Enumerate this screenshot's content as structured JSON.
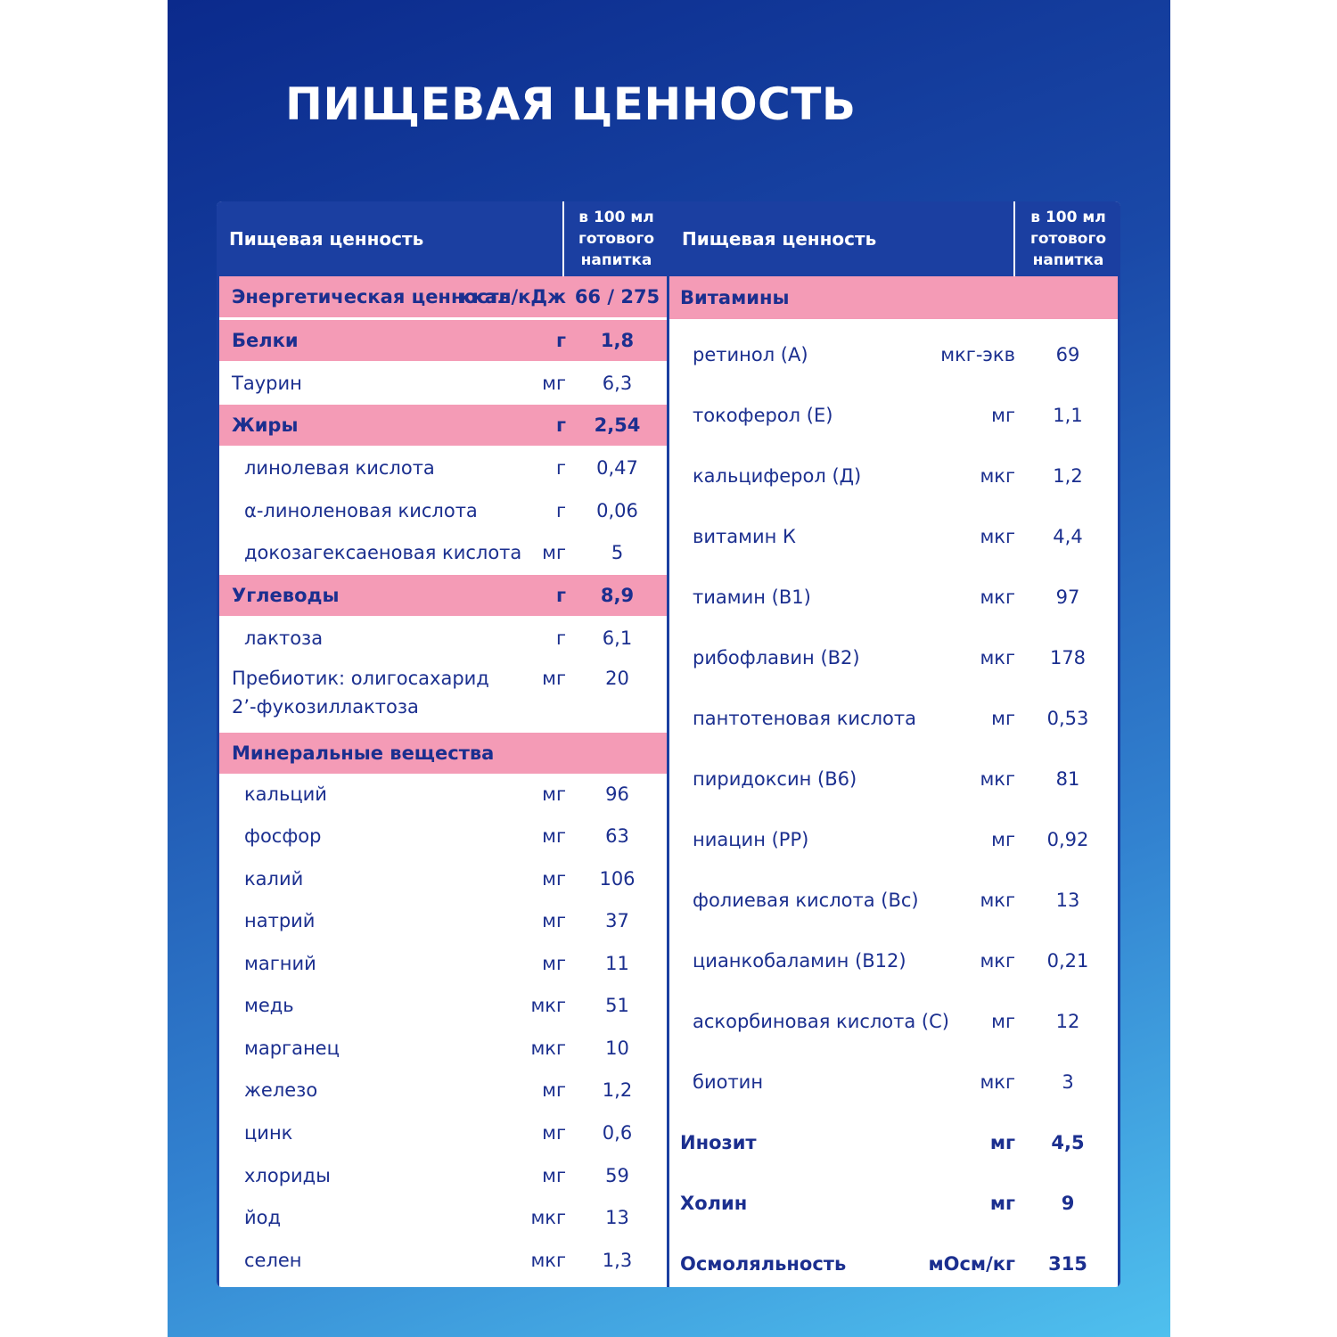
{
  "title": "ПИЩЕВАЯ ЦЕННОСТЬ",
  "header": {
    "name_label": "Пищевая ценность",
    "value_label_lines": [
      "в 100 мл",
      "готового",
      "напитка"
    ]
  },
  "left_rows": [
    {
      "name": "Энергетическая ценность",
      "unit": "ккал/кДж",
      "value": "66 / 275",
      "style": "pink"
    },
    {
      "name": "Белки",
      "unit": "г",
      "value": "1,8",
      "style": "pink"
    },
    {
      "name": "Таурин",
      "unit": "мг",
      "value": "6,3",
      "style": "plain"
    },
    {
      "name": "Жиры",
      "unit": "г",
      "value": "2,54",
      "style": "pink"
    },
    {
      "name": "линолевая кислота",
      "unit": "г",
      "value": "0,47",
      "style": "sub"
    },
    {
      "name": "α-линоленовая кислота",
      "unit": "г",
      "value": "0,06",
      "style": "sub"
    },
    {
      "name": "докозагексаеновая кислота",
      "unit": "мг",
      "value": "5",
      "style": "sub"
    },
    {
      "name": "Углеводы",
      "unit": "г",
      "value": "8,9",
      "style": "pink"
    },
    {
      "name": "лактоза",
      "unit": "г",
      "value": "6,1",
      "style": "sub"
    },
    {
      "name": "Пребиотик: олигосахарид 2’-фукозиллактоза",
      "unit": "мг",
      "value": "20",
      "style": "multi"
    },
    {
      "name": "Минеральные вещества",
      "unit": "",
      "value": "",
      "style": "pink"
    },
    {
      "name": "кальций",
      "unit": "мг",
      "value": "96",
      "style": "sub"
    },
    {
      "name": "фосфор",
      "unit": "мг",
      "value": "63",
      "style": "sub"
    },
    {
      "name": "калий",
      "unit": "мг",
      "value": "106",
      "style": "sub"
    },
    {
      "name": "натрий",
      "unit": "мг",
      "value": "37",
      "style": "sub"
    },
    {
      "name": "магний",
      "unit": "мг",
      "value": "11",
      "style": "sub"
    },
    {
      "name": "медь",
      "unit": "мкг",
      "value": "51",
      "style": "sub"
    },
    {
      "name": "марганец",
      "unit": "мкг",
      "value": "10",
      "style": "sub"
    },
    {
      "name": "железо",
      "unit": "мг",
      "value": "1,2",
      "style": "sub"
    },
    {
      "name": "цинк",
      "unit": "мг",
      "value": "0,6",
      "style": "sub"
    },
    {
      "name": "хлориды",
      "unit": "мг",
      "value": "59",
      "style": "sub"
    },
    {
      "name": "йод",
      "unit": "мкг",
      "value": "13",
      "style": "sub"
    },
    {
      "name": "селен",
      "unit": "мкг",
      "value": "1,3",
      "style": "sub"
    }
  ],
  "right_rows": [
    {
      "name": "Витамины",
      "unit": "",
      "value": "",
      "style": "pink"
    },
    {
      "name": "ретинол (А)",
      "unit": "мкг-экв",
      "value": "69",
      "style": "sub"
    },
    {
      "name": "токоферол (Е)",
      "unit": "мг",
      "value": "1,1",
      "style": "sub"
    },
    {
      "name": "кальциферол (Д)",
      "unit": "мкг",
      "value": "1,2",
      "style": "sub"
    },
    {
      "name": "витамин К",
      "unit": "мкг",
      "value": "4,4",
      "style": "sub"
    },
    {
      "name": "тиамин (В1)",
      "unit": "мкг",
      "value": "97",
      "style": "sub"
    },
    {
      "name": "рибофлавин (В2)",
      "unit": "мкг",
      "value": "178",
      "style": "sub"
    },
    {
      "name": "пантотеновая кислота",
      "unit": "мг",
      "value": "0,53",
      "style": "sub"
    },
    {
      "name": "пиридоксин (В6)",
      "unit": "мкг",
      "value": "81",
      "style": "sub"
    },
    {
      "name": "ниацин (РР)",
      "unit": "мг",
      "value": "0,92",
      "style": "sub"
    },
    {
      "name": "фолиевая кислота (Вс)",
      "unit": "мкг",
      "value": "13",
      "style": "sub"
    },
    {
      "name": "цианкобаламин (В12)",
      "unit": "мкг",
      "value": "0,21",
      "style": "sub"
    },
    {
      "name": "аскорбиновая кислота (С)",
      "unit": "мг",
      "value": "12",
      "style": "sub"
    },
    {
      "name": "биотин",
      "unit": "мкг",
      "value": "3",
      "style": "sub"
    },
    {
      "name": "Инозит",
      "unit": "мг",
      "value": "4,5",
      "style": "bold"
    },
    {
      "name": "Холин",
      "unit": "мг",
      "value": "9",
      "style": "bold"
    },
    {
      "name": "Осмоляльность",
      "unit": "мОсм/кг",
      "value": "315",
      "style": "bold"
    }
  ],
  "colors": {
    "header_bg": "#1b3fa1",
    "highlight_row": "#f49bb6",
    "text": "#1b2f8f",
    "gradient_top": "#0b2a8c",
    "gradient_bottom": "#4fc0ee"
  }
}
